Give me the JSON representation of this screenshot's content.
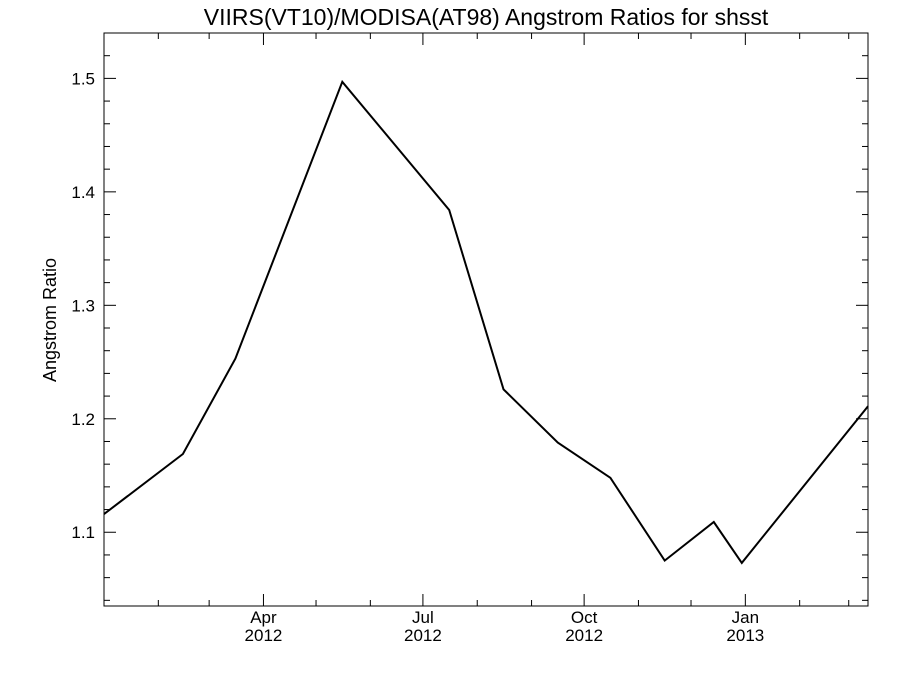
{
  "chart_data": {
    "type": "line",
    "title": "VIIRS(VT10)/MODISA(AT98)  Angstrom Ratios for shsst",
    "xlabel": "",
    "ylabel": "Angstrom Ratio",
    "xlim": [
      "2012-01-01",
      "2013-03-12"
    ],
    "ylim": [
      1.035,
      1.54
    ],
    "yticks": [
      1.1,
      1.2,
      1.3,
      1.4,
      1.5
    ],
    "ytick_labels": [
      "1.1",
      "1.2",
      "1.3",
      "1.4",
      "1.5"
    ],
    "xticks": [
      {
        "date": "2012-04-01",
        "label": "Apr",
        "year": "2012"
      },
      {
        "date": "2012-07-01",
        "label": "Jul",
        "year": "2012"
      },
      {
        "date": "2012-10-01",
        "label": "Oct",
        "year": "2012"
      },
      {
        "date": "2013-01-01",
        "label": "Jan",
        "year": "2013"
      }
    ],
    "x_minor_ticks": [
      "2012-02-01",
      "2012-03-01",
      "2012-05-01",
      "2012-06-01",
      "2012-08-01",
      "2012-09-01",
      "2012-11-01",
      "2012-12-01",
      "2013-02-01",
      "2013-03-01"
    ],
    "grid": false,
    "series": [
      {
        "x": [
          "2012-01-01",
          "2012-02-15",
          "2012-03-16",
          "2012-05-16",
          "2012-07-16",
          "2012-08-16",
          "2012-09-16",
          "2012-10-16",
          "2012-11-16",
          "2012-12-14",
          "2012-12-30",
          "2013-03-12"
        ],
        "values": [
          1.116,
          1.169,
          1.253,
          1.497,
          1.384,
          1.226,
          1.179,
          1.148,
          1.075,
          1.109,
          1.073,
          1.211
        ]
      }
    ]
  }
}
